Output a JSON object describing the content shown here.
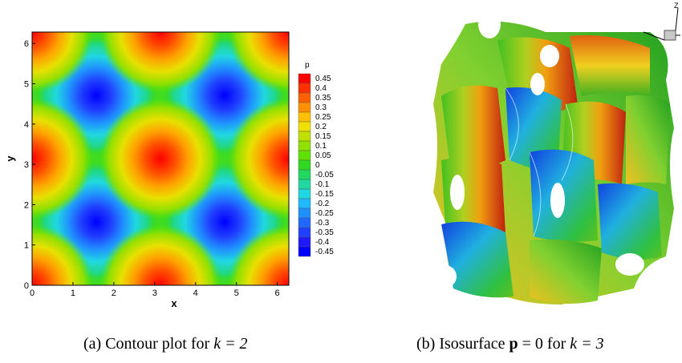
{
  "panel_a": {
    "caption_prefix": "(a) Contour plot for ",
    "caption_math": "k = 2",
    "legend_title": "p",
    "legend_levels": [
      "0.45",
      "0.4",
      "0.35",
      "0.3",
      "0.25",
      "0.2",
      "0.15",
      "0.1",
      "0.05",
      "0",
      "-0.05",
      "-0.1",
      "-0.15",
      "-0.2",
      "-0.25",
      "-0.3",
      "-0.35",
      "-0.4",
      "-0.45"
    ],
    "legend_colors": [
      "#ff0000",
      "#ff3000",
      "#ff6000",
      "#ff9000",
      "#ffc000",
      "#f0e000",
      "#c0e000",
      "#90e000",
      "#60e000",
      "#30d820",
      "#20d860",
      "#20d8a0",
      "#20d8e0",
      "#20b8ff",
      "#2090ff",
      "#2068ff",
      "#2040ff",
      "#2018ff",
      "#0000ff"
    ]
  },
  "panel_b": {
    "caption_prefix": "(b) Isosurface ",
    "caption_bold": "p",
    "caption_mid": " = 0 for ",
    "caption_math": "k = 3",
    "axis_label": "Z"
  },
  "chart_data": {
    "type": "heatmap",
    "title": "",
    "xlabel": "x",
    "ylabel": "y",
    "xlim": [
      0,
      6.283
    ],
    "ylim": [
      0,
      6.283
    ],
    "xticks": [
      "0",
      "1",
      "2",
      "3",
      "4",
      "5",
      "6"
    ],
    "yticks": [
      "0",
      "1",
      "2",
      "3",
      "4",
      "5",
      "6"
    ],
    "colorbar_label": "p",
    "colorbar_range": [
      -0.45,
      0.45
    ],
    "maxima": [
      [
        0,
        0
      ],
      [
        3.14,
        0
      ],
      [
        6.28,
        0
      ],
      [
        0,
        3.14
      ],
      [
        3.14,
        3.14
      ],
      [
        6.28,
        3.14
      ],
      [
        0,
        6.28
      ],
      [
        3.14,
        6.28
      ],
      [
        6.28,
        6.28
      ]
    ],
    "maxima_value": 0.5,
    "minima": [
      [
        1.57,
        1.57
      ],
      [
        4.71,
        1.57
      ],
      [
        1.57,
        4.71
      ],
      [
        4.71,
        4.71
      ]
    ],
    "minima_value": -0.5
  }
}
